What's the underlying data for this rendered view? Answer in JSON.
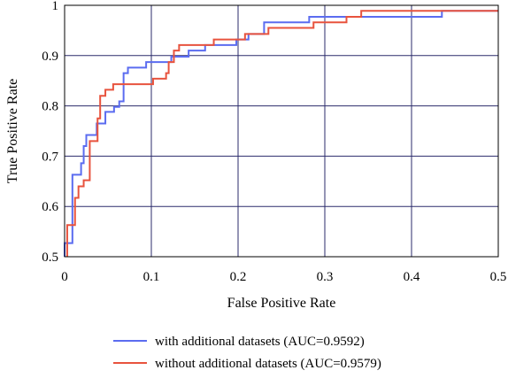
{
  "chart_data": {
    "type": "line",
    "title": "",
    "xlabel": "False Positive Rate",
    "ylabel": "True Positive Rate",
    "xlim": [
      0,
      0.5
    ],
    "ylim": [
      0.5,
      1
    ],
    "x_ticks": [
      "0",
      "0.1",
      "0.2",
      "0.3",
      "0.4",
      "0.5"
    ],
    "y_ticks": [
      "0.5",
      "0.6",
      "0.7",
      "0.8",
      "0.9",
      "1"
    ],
    "grid": true,
    "legend_position": "bottom-center",
    "series": [
      {
        "name": "with additional datasets (AUC=0.9592)",
        "color": "#5b6cf0",
        "points": [
          [
            0,
            0.5
          ],
          [
            0,
            0.527
          ],
          [
            0.009,
            0.527
          ],
          [
            0.009,
            0.663
          ],
          [
            0.019,
            0.663
          ],
          [
            0.019,
            0.686
          ],
          [
            0.022,
            0.686
          ],
          [
            0.022,
            0.72
          ],
          [
            0.025,
            0.72
          ],
          [
            0.025,
            0.742
          ],
          [
            0.037,
            0.742
          ],
          [
            0.037,
            0.765
          ],
          [
            0.047,
            0.765
          ],
          [
            0.047,
            0.788
          ],
          [
            0.057,
            0.788
          ],
          [
            0.057,
            0.798
          ],
          [
            0.063,
            0.798
          ],
          [
            0.063,
            0.809
          ],
          [
            0.068,
            0.809
          ],
          [
            0.068,
            0.865
          ],
          [
            0.073,
            0.865
          ],
          [
            0.073,
            0.876
          ],
          [
            0.094,
            0.876
          ],
          [
            0.094,
            0.887
          ],
          [
            0.123,
            0.887
          ],
          [
            0.123,
            0.898
          ],
          [
            0.143,
            0.898
          ],
          [
            0.143,
            0.91
          ],
          [
            0.162,
            0.91
          ],
          [
            0.162,
            0.921
          ],
          [
            0.198,
            0.921
          ],
          [
            0.198,
            0.932
          ],
          [
            0.212,
            0.932
          ],
          [
            0.212,
            0.943
          ],
          [
            0.23,
            0.943
          ],
          [
            0.23,
            0.966
          ],
          [
            0.282,
            0.966
          ],
          [
            0.282,
            0.977
          ],
          [
            0.435,
            0.977
          ],
          [
            0.435,
            0.989
          ],
          [
            0.5,
            0.989
          ]
        ]
      },
      {
        "name": "without additional datasets (AUC=0.9579)",
        "color": "#e8533e",
        "points": [
          [
            0.003,
            0.5
          ],
          [
            0.003,
            0.563
          ],
          [
            0.012,
            0.563
          ],
          [
            0.012,
            0.617
          ],
          [
            0.016,
            0.617
          ],
          [
            0.016,
            0.64
          ],
          [
            0.022,
            0.64
          ],
          [
            0.022,
            0.652
          ],
          [
            0.029,
            0.652
          ],
          [
            0.029,
            0.73
          ],
          [
            0.038,
            0.73
          ],
          [
            0.038,
            0.775
          ],
          [
            0.041,
            0.775
          ],
          [
            0.041,
            0.82
          ],
          [
            0.047,
            0.82
          ],
          [
            0.047,
            0.832
          ],
          [
            0.056,
            0.832
          ],
          [
            0.056,
            0.843
          ],
          [
            0.102,
            0.843
          ],
          [
            0.102,
            0.854
          ],
          [
            0.117,
            0.854
          ],
          [
            0.117,
            0.865
          ],
          [
            0.12,
            0.865
          ],
          [
            0.12,
            0.887
          ],
          [
            0.126,
            0.887
          ],
          [
            0.126,
            0.91
          ],
          [
            0.132,
            0.91
          ],
          [
            0.132,
            0.921
          ],
          [
            0.172,
            0.921
          ],
          [
            0.172,
            0.932
          ],
          [
            0.208,
            0.932
          ],
          [
            0.208,
            0.943
          ],
          [
            0.235,
            0.943
          ],
          [
            0.235,
            0.955
          ],
          [
            0.287,
            0.955
          ],
          [
            0.287,
            0.966
          ],
          [
            0.325,
            0.966
          ],
          [
            0.325,
            0.977
          ],
          [
            0.342,
            0.977
          ],
          [
            0.342,
            0.989
          ],
          [
            0.5,
            0.989
          ]
        ]
      }
    ]
  }
}
